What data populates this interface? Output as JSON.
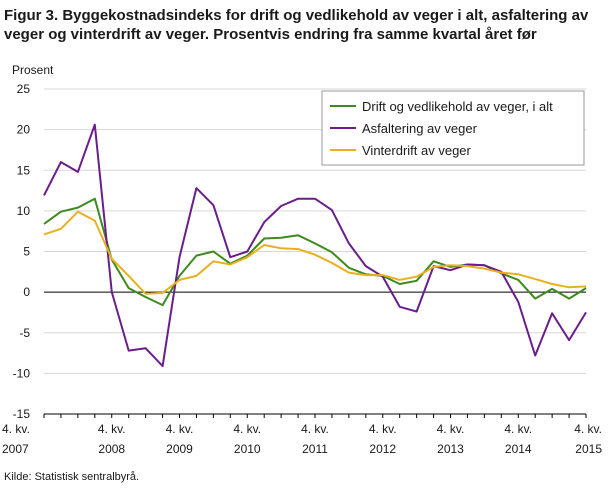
{
  "title": "Figur 3. Byggekostnadsindeks for drift og vedlikehold av veger i alt, asfaltering av veger og vinterdrift av veger. Prosentvis endring fra samme kvartal året før",
  "source": "Kilde: Statistisk sentralbyrå.",
  "chart_data": {
    "type": "line",
    "title": "Figur 3. Byggekostnadsindeks for drift og vedlikehold av veger i alt, asfaltering av veger og vinterdrift av veger. Prosentvis endring fra samme kvartal året før",
    "ylabel": "Prosent",
    "xlabel": "",
    "ylim": [
      -15,
      25
    ],
    "yticks": [
      -15,
      -10,
      -5,
      0,
      5,
      10,
      15,
      20,
      25
    ],
    "grid": true,
    "legend_position": "top-right",
    "x": [
      "4. kv. 2007",
      "1. kv. 2008",
      "2. kv. 2008",
      "3. kv. 2008",
      "4. kv. 2008",
      "1. kv. 2009",
      "2. kv. 2009",
      "3. kv. 2009",
      "4. kv. 2009",
      "1. kv. 2010",
      "2. kv. 2010",
      "3. kv. 2010",
      "4. kv. 2010",
      "1. kv. 2011",
      "2. kv. 2011",
      "3. kv. 2011",
      "4. kv. 2011",
      "1. kv. 2012",
      "2. kv. 2012",
      "3. kv. 2012",
      "4. kv. 2012",
      "1. kv. 2013",
      "2. kv. 2013",
      "3. kv. 2013",
      "4. kv. 2013",
      "1. kv. 2014",
      "2. kv. 2014",
      "3. kv. 2014",
      "4. kv. 2014",
      "1. kv. 2015",
      "2. kv. 2015",
      "3. kv. 2015",
      "4. kv. 2015"
    ],
    "x_tick_labels": [
      {
        "index": 0,
        "line1": "4. kv.",
        "line2": "2007"
      },
      {
        "index": 4,
        "line1": "4. kv.",
        "line2": "2008"
      },
      {
        "index": 8,
        "line1": "4. kv.",
        "line2": "2009"
      },
      {
        "index": 12,
        "line1": "4. kv.",
        "line2": "2010"
      },
      {
        "index": 16,
        "line1": "4. kv.",
        "line2": "2011"
      },
      {
        "index": 20,
        "line1": "4. kv.",
        "line2": "2012"
      },
      {
        "index": 24,
        "line1": "4. kv.",
        "line2": "2013"
      },
      {
        "index": 28,
        "line1": "4. kv.",
        "line2": "2014"
      },
      {
        "index": 32,
        "line1": "4. kv.",
        "line2": "2015"
      }
    ],
    "series": [
      {
        "name": "Drift og vedlikehold av veger, i alt",
        "color": "#3e8a1e",
        "values": [
          8.4,
          9.9,
          10.4,
          11.5,
          4.0,
          0.5,
          -0.6,
          -1.6,
          2.0,
          4.5,
          5.0,
          3.5,
          4.5,
          6.6,
          6.7,
          7.0,
          6.0,
          4.9,
          3.0,
          2.2,
          2.0,
          1.0,
          1.4,
          3.8,
          3.1,
          3.4,
          3.3,
          2.3,
          1.5,
          -0.8,
          0.4,
          -0.8,
          0.5
        ]
      },
      {
        "name": "Asfaltering av veger",
        "color": "#6a1e8a",
        "values": [
          11.9,
          16.0,
          14.8,
          20.6,
          0.0,
          -7.2,
          -6.9,
          -9.1,
          4.3,
          12.8,
          10.7,
          4.3,
          5.0,
          8.6,
          10.6,
          11.5,
          11.5,
          10.1,
          6.0,
          3.2,
          1.9,
          -1.8,
          -2.4,
          3.2,
          2.7,
          3.4,
          3.3,
          2.5,
          -1.2,
          -7.8,
          -2.6,
          -5.9,
          -2.5
        ]
      },
      {
        "name": "Vinterdrift av veger",
        "color": "#e8b01e",
        "values": [
          7.1,
          7.8,
          9.9,
          8.8,
          4.1,
          2.0,
          -0.2,
          -0.1,
          1.5,
          2.0,
          3.8,
          3.4,
          4.3,
          5.8,
          5.4,
          5.3,
          4.6,
          3.6,
          2.4,
          2.1,
          2.1,
          1.5,
          1.9,
          3.1,
          3.3,
          3.2,
          2.9,
          2.4,
          2.2,
          1.6,
          1.0,
          0.6,
          0.7
        ]
      }
    ]
  }
}
